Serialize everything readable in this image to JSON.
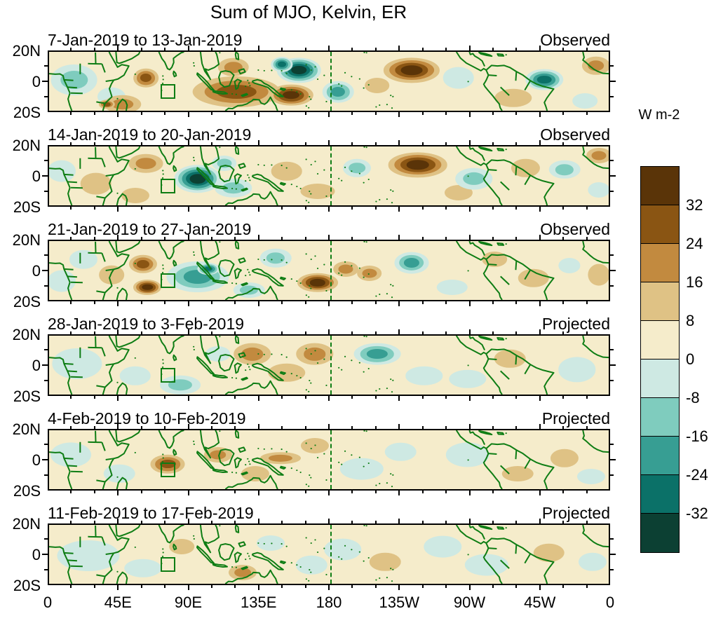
{
  "figure": {
    "title": "Sum of MJO, Kelvin, ER"
  },
  "colorbar": {
    "label": "W m-2",
    "tick_labels": [
      "32",
      "24",
      "16",
      "8",
      "0",
      "-8",
      "-16",
      "-24",
      "-32"
    ],
    "colors_top_to_bottom": [
      "#5A3408",
      "#8A5513",
      "#C28A3F",
      "#DFC285",
      "#F5ECCB",
      "#CEE9E3",
      "#7FCCBE",
      "#379E93",
      "#0B7168",
      "#0C4033"
    ]
  },
  "style": {
    "coastline_color": "#0E7D14",
    "frame_color": "#000000",
    "base_fill": "#F5ECCB",
    "background": "#FFFFFF"
  },
  "chart_data": {
    "type": "heatmap",
    "title": "Sum of MJO, Kelvin, ER",
    "units": "W m-2",
    "contour_levels": [
      -32,
      -24,
      -16,
      -8,
      0,
      8,
      16,
      24,
      32
    ],
    "positive_band_colors": [
      "#DFC285",
      "#C28A3F",
      "#8A5513",
      "#5A3408"
    ],
    "negative_band_colors": [
      "#CEE9E3",
      "#7FCCBE",
      "#379E93",
      "#0B7168",
      "#0C4033"
    ],
    "lon_range": [
      0,
      360
    ],
    "lat_range": [
      -20,
      20
    ],
    "x_tick_labels": [
      "0",
      "45E",
      "90E",
      "135E",
      "180",
      "135W",
      "90W",
      "45W",
      "0"
    ],
    "x_tick_lons": [
      0,
      45,
      90,
      135,
      180,
      225,
      270,
      315,
      360
    ],
    "y_tick_labels": [
      "20N",
      "0",
      "20S"
    ],
    "dateline_lon": 180,
    "roi_box": {
      "lon_min": 71.5,
      "lon_max": 81,
      "lat_min": -10.5,
      "lat_max": -1
    },
    "panels": [
      {
        "date_range": "7-Jan-2019 to 13-Jan-2019",
        "status": "Observed",
        "features": [
          {
            "lon": 16,
            "lat": 2,
            "rx": 15,
            "ry": 10,
            "peak": -16
          },
          {
            "lon": 40,
            "lat": -9,
            "rx": 9,
            "ry": 6,
            "peak": -8
          },
          {
            "lon": 47,
            "lat": -14,
            "rx": 12,
            "ry": 6,
            "peak": 16
          },
          {
            "lon": 37,
            "lat": -14,
            "rx": 5,
            "ry": 3,
            "peak": 24
          },
          {
            "lon": 62,
            "lat": 3,
            "rx": 8,
            "ry": 6,
            "peak": 24
          },
          {
            "lon": 120,
            "lat": -6,
            "rx": 28,
            "ry": 10,
            "peak": 24
          },
          {
            "lon": 155,
            "lat": -8,
            "rx": 14,
            "ry": 7,
            "peak": 40
          },
          {
            "lon": 118,
            "lat": 10,
            "rx": 10,
            "ry": 6,
            "peak": 16
          },
          {
            "lon": 160,
            "lat": 8,
            "rx": 14,
            "ry": 8,
            "peak": -40
          },
          {
            "lon": 149,
            "lat": 12,
            "rx": 7,
            "ry": 5,
            "peak": -32
          },
          {
            "lon": 185,
            "lat": -6,
            "rx": 10,
            "ry": 7,
            "peak": -24
          },
          {
            "lon": 210,
            "lat": -2,
            "rx": 8,
            "ry": 5,
            "peak": 8
          },
          {
            "lon": 232,
            "lat": 8,
            "rx": 18,
            "ry": 8,
            "peak": 32
          },
          {
            "lon": 262,
            "lat": 3,
            "rx": 10,
            "ry": 7,
            "peak": -8
          },
          {
            "lon": 297,
            "lat": -10,
            "rx": 12,
            "ry": 6,
            "peak": 8
          },
          {
            "lon": 317,
            "lat": 2,
            "rx": 12,
            "ry": 7,
            "peak": -32
          },
          {
            "lon": 350,
            "lat": 11,
            "rx": 9,
            "ry": 6,
            "peak": 16
          },
          {
            "lon": 343,
            "lat": -12,
            "rx": 8,
            "ry": 5,
            "peak": -8
          }
        ]
      },
      {
        "date_range": "14-Jan-2019 to 20-Jan-2019",
        "status": "Observed",
        "features": [
          {
            "lon": 8,
            "lat": 4,
            "rx": 9,
            "ry": 7,
            "peak": -8
          },
          {
            "lon": 30,
            "lat": -4,
            "rx": 10,
            "ry": 7,
            "peak": 8
          },
          {
            "lon": 62,
            "lat": 9,
            "rx": 11,
            "ry": 6,
            "peak": 16
          },
          {
            "lon": 55,
            "lat": -12,
            "rx": 9,
            "ry": 5,
            "peak": 8
          },
          {
            "lon": 95,
            "lat": -1,
            "rx": 15,
            "ry": 9,
            "peak": -40
          },
          {
            "lon": 118,
            "lat": -7,
            "rx": 12,
            "ry": 6,
            "peak": -16
          },
          {
            "lon": 112,
            "lat": 9,
            "rx": 8,
            "ry": 5,
            "peak": -16
          },
          {
            "lon": 152,
            "lat": 4,
            "rx": 10,
            "ry": 6,
            "peak": 8
          },
          {
            "lon": 172,
            "lat": -9,
            "rx": 11,
            "ry": 5,
            "peak": 8
          },
          {
            "lon": 197,
            "lat": 6,
            "rx": 9,
            "ry": 6,
            "peak": -16
          },
          {
            "lon": 236,
            "lat": 8,
            "rx": 19,
            "ry": 8,
            "peak": 32
          },
          {
            "lon": 262,
            "lat": -10,
            "rx": 9,
            "ry": 5,
            "peak": 8
          },
          {
            "lon": 272,
            "lat": -1,
            "rx": 12,
            "ry": 7,
            "peak": -16
          },
          {
            "lon": 305,
            "lat": 6,
            "rx": 9,
            "ry": 6,
            "peak": 8
          },
          {
            "lon": 330,
            "lat": 5,
            "rx": 10,
            "ry": 6,
            "peak": -16
          },
          {
            "lon": 352,
            "lat": 14,
            "rx": 8,
            "ry": 5,
            "peak": 16
          },
          {
            "lon": 352,
            "lat": -8,
            "rx": 7,
            "ry": 5,
            "peak": -8
          }
        ]
      },
      {
        "date_range": "21-Jan-2019 to 27-Jan-2019",
        "status": "Observed",
        "features": [
          {
            "lon": 8,
            "lat": -6,
            "rx": 9,
            "ry": 7,
            "peak": -8
          },
          {
            "lon": 22,
            "lat": 8,
            "rx": 9,
            "ry": 6,
            "peak": -8
          },
          {
            "lon": 40,
            "lat": -2,
            "rx": 8,
            "ry": 6,
            "peak": 8
          },
          {
            "lon": 60,
            "lat": 5,
            "rx": 9,
            "ry": 6,
            "peak": 24
          },
          {
            "lon": 63,
            "lat": -10,
            "rx": 9,
            "ry": 5,
            "peak": 32
          },
          {
            "lon": 95,
            "lat": -3,
            "rx": 20,
            "ry": 10,
            "peak": -24
          },
          {
            "lon": 102,
            "lat": 2,
            "rx": 7,
            "ry": 4,
            "peak": -32
          },
          {
            "lon": 128,
            "lat": -12,
            "rx": 10,
            "ry": 5,
            "peak": -16
          },
          {
            "lon": 145,
            "lat": 9,
            "rx": 10,
            "ry": 6,
            "peak": -16
          },
          {
            "lon": 172,
            "lat": -7,
            "rx": 13,
            "ry": 6,
            "peak": 40
          },
          {
            "lon": 190,
            "lat": 2,
            "rx": 8,
            "ry": 5,
            "peak": 16
          },
          {
            "lon": 205,
            "lat": -1,
            "rx": 8,
            "ry": 5,
            "peak": 16
          },
          {
            "lon": 232,
            "lat": 6,
            "rx": 11,
            "ry": 7,
            "peak": -24
          },
          {
            "lon": 258,
            "lat": -10,
            "rx": 10,
            "ry": 5,
            "peak": -8
          },
          {
            "lon": 285,
            "lat": 8,
            "rx": 8,
            "ry": 5,
            "peak": 8
          },
          {
            "lon": 310,
            "lat": -4,
            "rx": 10,
            "ry": 6,
            "peak": 8
          },
          {
            "lon": 333,
            "lat": 4,
            "rx": 7,
            "ry": 5,
            "peak": -8
          },
          {
            "lon": 352,
            "lat": -2,
            "rx": 7,
            "ry": 7,
            "peak": 8
          }
        ]
      },
      {
        "date_range": "28-Jan-2019 to 3-Feb-2019",
        "status": "Projected",
        "features": [
          {
            "lon": 18,
            "lat": 2,
            "rx": 16,
            "ry": 10,
            "peak": -8
          },
          {
            "lon": 55,
            "lat": -6,
            "rx": 10,
            "ry": 6,
            "peak": -8
          },
          {
            "lon": 84,
            "lat": -12,
            "rx": 13,
            "ry": 6,
            "peak": -16
          },
          {
            "lon": 108,
            "lat": 8,
            "rx": 8,
            "ry": 5,
            "peak": -8
          },
          {
            "lon": 130,
            "lat": 8,
            "rx": 12,
            "ry": 7,
            "peak": 16
          },
          {
            "lon": 152,
            "lat": -4,
            "rx": 12,
            "ry": 6,
            "peak": 8
          },
          {
            "lon": 170,
            "lat": 8,
            "rx": 12,
            "ry": 7,
            "peak": 16
          },
          {
            "lon": 210,
            "lat": 8,
            "rx": 15,
            "ry": 7,
            "peak": -24
          },
          {
            "lon": 240,
            "lat": -6,
            "rx": 12,
            "ry": 6,
            "peak": -8
          },
          {
            "lon": 268,
            "lat": -8,
            "rx": 12,
            "ry": 6,
            "peak": -8
          },
          {
            "lon": 295,
            "lat": 5,
            "rx": 10,
            "ry": 6,
            "peak": 8
          },
          {
            "lon": 338,
            "lat": -2,
            "rx": 12,
            "ry": 8,
            "peak": -8
          }
        ]
      },
      {
        "date_range": "4-Feb-2019 to 10-Feb-2019",
        "status": "Projected",
        "features": [
          {
            "lon": 14,
            "lat": 4,
            "rx": 13,
            "ry": 8,
            "peak": -8
          },
          {
            "lon": 45,
            "lat": -8,
            "rx": 10,
            "ry": 6,
            "peak": -8
          },
          {
            "lon": 76,
            "lat": -2,
            "rx": 11,
            "ry": 6,
            "peak": 24
          },
          {
            "lon": 108,
            "lat": 4,
            "rx": 9,
            "ry": 5,
            "peak": 16
          },
          {
            "lon": 132,
            "lat": -8,
            "rx": 9,
            "ry": 5,
            "peak": 8
          },
          {
            "lon": 148,
            "lat": 2,
            "rx": 13,
            "ry": 4,
            "peak": 16
          },
          {
            "lon": 170,
            "lat": 10,
            "rx": 9,
            "ry": 5,
            "peak": 8
          },
          {
            "lon": 200,
            "lat": -5,
            "rx": 14,
            "ry": 7,
            "peak": -8
          },
          {
            "lon": 225,
            "lat": 6,
            "rx": 10,
            "ry": 6,
            "peak": -8
          },
          {
            "lon": 268,
            "lat": 4,
            "rx": 14,
            "ry": 8,
            "peak": -8
          },
          {
            "lon": 300,
            "lat": -8,
            "rx": 10,
            "ry": 5,
            "peak": 8
          },
          {
            "lon": 330,
            "lat": 2,
            "rx": 9,
            "ry": 6,
            "peak": 8
          },
          {
            "lon": 347,
            "lat": -10,
            "rx": 9,
            "ry": 5,
            "peak": -8
          }
        ]
      },
      {
        "date_range": "11-Feb-2019 to 17-Feb-2019",
        "status": "Projected",
        "features": [
          {
            "lon": 25,
            "lat": 0,
            "rx": 20,
            "ry": 10,
            "peak": -8
          },
          {
            "lon": 60,
            "lat": -8,
            "rx": 12,
            "ry": 6,
            "peak": -8
          },
          {
            "lon": 85,
            "lat": 6,
            "rx": 8,
            "ry": 5,
            "peak": 8
          },
          {
            "lon": 124,
            "lat": -11,
            "rx": 9,
            "ry": 5,
            "peak": 16
          },
          {
            "lon": 142,
            "lat": 8,
            "rx": 9,
            "ry": 5,
            "peak": -8
          },
          {
            "lon": 168,
            "lat": -6,
            "rx": 10,
            "ry": 6,
            "peak": -8
          },
          {
            "lon": 188,
            "lat": 4,
            "rx": 12,
            "ry": 7,
            "peak": -8
          },
          {
            "lon": 215,
            "lat": -4,
            "rx": 10,
            "ry": 6,
            "peak": 8
          },
          {
            "lon": 252,
            "lat": 6,
            "rx": 12,
            "ry": 7,
            "peak": -8
          },
          {
            "lon": 280,
            "lat": -6,
            "rx": 14,
            "ry": 7,
            "peak": -8
          },
          {
            "lon": 320,
            "lat": 2,
            "rx": 10,
            "ry": 6,
            "peak": 8
          },
          {
            "lon": 348,
            "lat": -4,
            "rx": 9,
            "ry": 6,
            "peak": -8
          }
        ]
      }
    ]
  }
}
